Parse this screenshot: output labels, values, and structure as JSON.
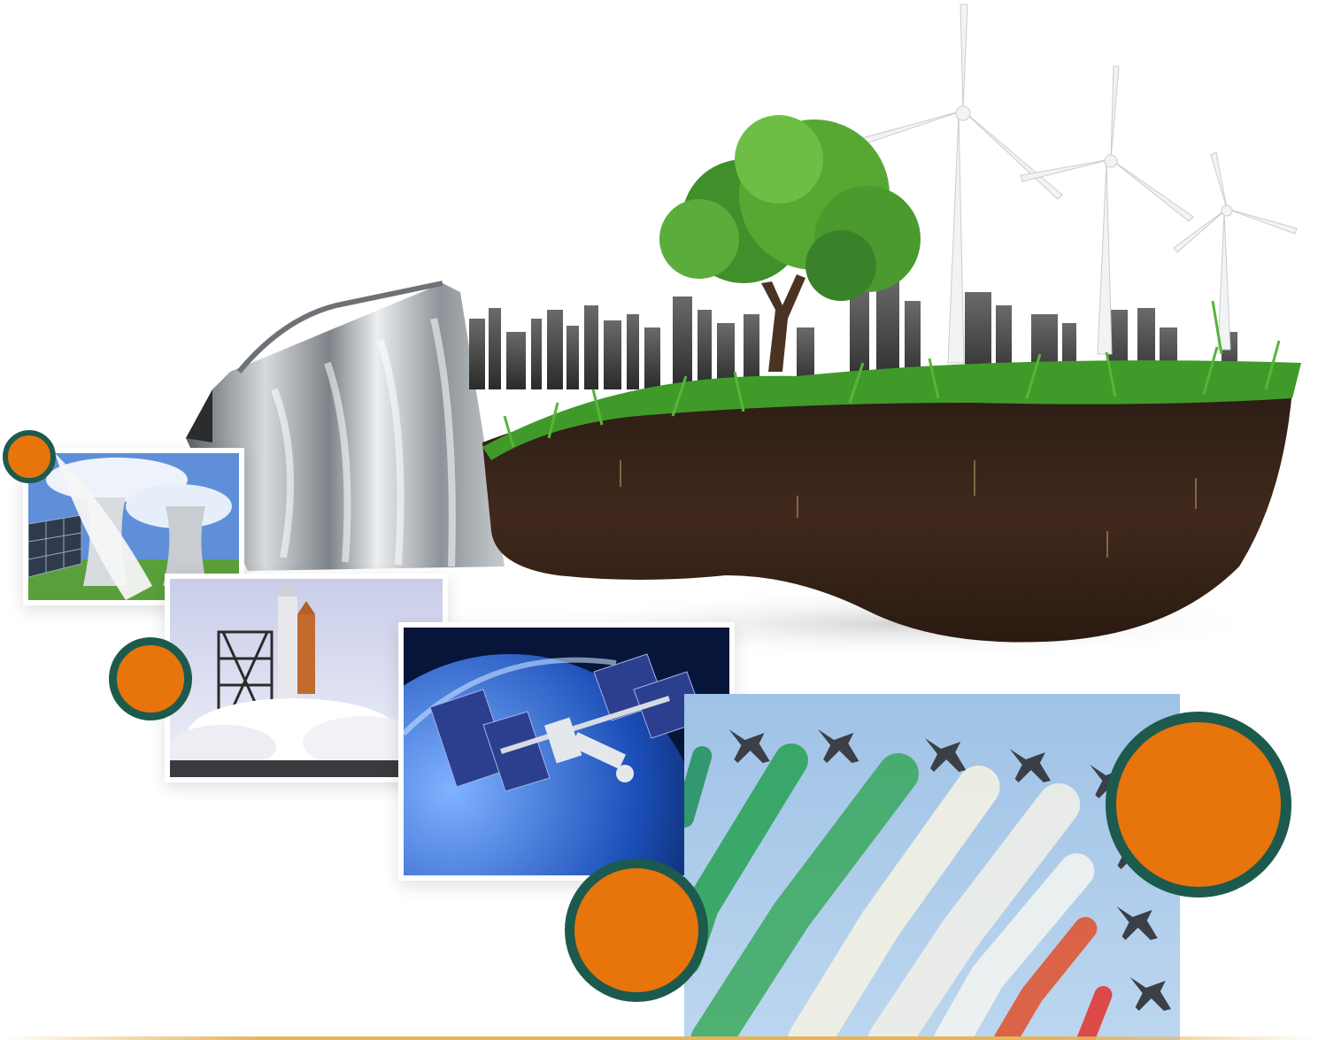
{
  "colors": {
    "accent_orange": "#e8740c",
    "accent_ring": "#1d5a4e",
    "sky_blue": "#a9c9e8",
    "grass_green": "#3f9a2a",
    "soil_brown": "#3b271b",
    "metal_gray": "#9ea3a8"
  },
  "scene": {
    "hero": {
      "subject": "bulb",
      "elements": [
        "bulb-base-icon",
        "city-skyline-icon",
        "tree-icon",
        "wind-turbine-icon",
        "grass-icon",
        "soil-icon"
      ]
    },
    "photos": [
      {
        "name": "power-plant-photo",
        "icon": "cooling-tower-icon"
      },
      {
        "name": "shuttle-launch-photo",
        "icon": "rocket-icon"
      },
      {
        "name": "space-station-photo",
        "icon": "satellite-icon"
      },
      {
        "name": "aerobatic-jets-photo",
        "icon": "airplane-icon"
      }
    ],
    "bubbles": [
      {
        "name": "orange-bubble-small"
      },
      {
        "name": "orange-bubble-medium"
      },
      {
        "name": "orange-bubble-large-bottom"
      },
      {
        "name": "orange-bubble-large-right"
      }
    ]
  }
}
